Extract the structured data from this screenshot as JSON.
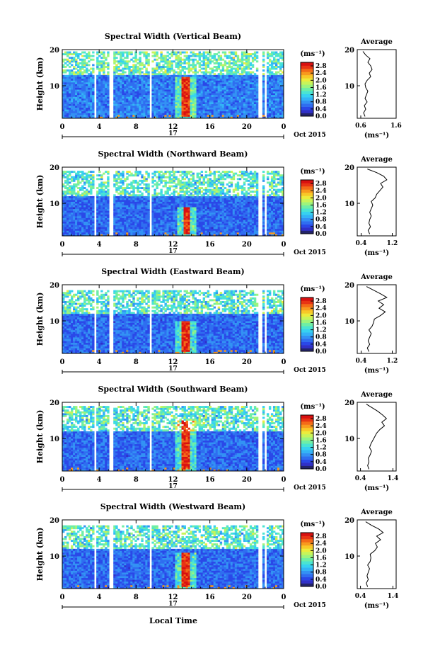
{
  "figure": {
    "xlabel": "Local Time",
    "ylabel": "Height (km)",
    "date_label": "Oct 2015",
    "day_label": "17",
    "unit_label": "(ms⁻¹)",
    "avg_title": "Average"
  },
  "colormap": [
    "#23236b",
    "#3030c8",
    "#2a48e8",
    "#2f6ef0",
    "#3392f4",
    "#33b4f6",
    "#37d2f0",
    "#4ae4d2",
    "#6eeea6",
    "#9cf47e",
    "#c8f45a",
    "#ecec3c",
    "#f8c828",
    "#f89a1e",
    "#f46a18",
    "#e83414",
    "#d81010"
  ],
  "chart_data": [
    {
      "type": "heatmap",
      "title": "Spectral Width (Vertical Beam)",
      "xlabel": "",
      "ylabel": "Height (km)",
      "x_ticks": [
        "0",
        "4",
        "8",
        "12",
        "16",
        "20",
        "0"
      ],
      "xlim": [
        0,
        24
      ],
      "y_ticks": [
        "10",
        "20"
      ],
      "ylim": [
        1,
        20
      ],
      "colorbar": {
        "ticks": [
          "0.0",
          "0.4",
          "0.8",
          "1.2",
          "1.6",
          "2.0",
          "2.4",
          "2.8"
        ],
        "range": [
          0,
          3.0
        ]
      },
      "gaps_hours": [
        [
          3.4,
          3.6
        ],
        [
          5.0,
          5.6
        ],
        [
          9.5,
          9.7
        ],
        [
          17.9,
          18.0
        ],
        [
          21.3,
          21.6
        ],
        [
          22.0,
          22.2
        ]
      ],
      "top_km": 19.5,
      "tropopause_km": 13,
      "enhancement": {
        "start_h": 13.0,
        "end_h": 13.8,
        "bottom_km": 1.5,
        "top_km": 12.5,
        "value": 2.8
      },
      "background_value": 0.7,
      "average_profile": {
        "title": "Average",
        "x_ticks": [
          "0.6",
          "1.6"
        ],
        "xlim": [
          0.5,
          1.6
        ],
        "y_ticks": [
          "10",
          "20"
        ],
        "ylim": [
          1,
          20
        ],
        "heights_km": [
          1.5,
          2.5,
          3.5,
          4.5,
          5.5,
          6.5,
          7.5,
          8.5,
          9.5,
          10.5,
          11.5,
          12.5,
          13.5,
          14.5,
          15.5,
          16.5,
          17.5,
          18.5,
          19.5
        ],
        "values": [
          0.72,
          0.68,
          0.74,
          0.7,
          0.78,
          0.72,
          0.76,
          0.8,
          0.74,
          0.72,
          0.78,
          0.88,
          0.84,
          0.92,
          0.88,
          0.8,
          0.86,
          0.74,
          0.66
        ]
      }
    },
    {
      "type": "heatmap",
      "title": "Spectral Width (Northward Beam)",
      "xlabel": "",
      "ylabel": "Height (km)",
      "x_ticks": [
        "0",
        "4",
        "8",
        "12",
        "16",
        "20",
        "0"
      ],
      "xlim": [
        0,
        24
      ],
      "y_ticks": [
        "10",
        "20"
      ],
      "ylim": [
        1,
        20
      ],
      "colorbar": {
        "ticks": [
          "0.0",
          "0.4",
          "0.8",
          "1.2",
          "1.6",
          "2.0",
          "2.4",
          "2.8"
        ],
        "range": [
          0,
          3.0
        ]
      },
      "gaps_hours": [
        [
          0.9,
          1.0
        ],
        [
          3.4,
          3.6
        ],
        [
          5.0,
          5.6
        ],
        [
          9.5,
          9.7
        ],
        [
          17.9,
          18.0
        ],
        [
          21.3,
          21.6
        ],
        [
          22.0,
          22.2
        ]
      ],
      "top_km": 19,
      "tropopause_km": 12,
      "enhancement": {
        "start_h": 13.2,
        "end_h": 13.8,
        "bottom_km": 1.5,
        "top_km": 9,
        "value": 2.8
      },
      "background_value": 0.6,
      "average_profile": {
        "title": "Average",
        "x_ticks": [
          "0.4",
          "1.2"
        ],
        "xlim": [
          0.3,
          1.3
        ],
        "y_ticks": [
          "10",
          "20"
        ],
        "ylim": [
          1,
          20
        ],
        "heights_km": [
          1.5,
          2.5,
          3.5,
          4.5,
          5.5,
          6.5,
          7.5,
          8.5,
          9.5,
          10.5,
          11.5,
          12.5,
          13.5,
          14.5,
          15.5,
          16.5,
          17.5,
          18.5,
          19.5
        ],
        "values": [
          0.62,
          0.58,
          0.64,
          0.6,
          0.62,
          0.66,
          0.62,
          0.66,
          0.7,
          0.66,
          0.76,
          0.8,
          0.88,
          0.96,
          0.9,
          1.06,
          0.98,
          0.8,
          0.56
        ]
      }
    },
    {
      "type": "heatmap",
      "title": "Spectral Width (Eastward Beam)",
      "xlabel": "",
      "ylabel": "Height (km)",
      "x_ticks": [
        "0",
        "4",
        "8",
        "12",
        "16",
        "20",
        "0"
      ],
      "xlim": [
        0,
        24
      ],
      "y_ticks": [
        "10",
        "20"
      ],
      "ylim": [
        1,
        20
      ],
      "colorbar": {
        "ticks": [
          "0.0",
          "0.4",
          "0.8",
          "1.2",
          "1.6",
          "2.0",
          "2.4",
          "2.8"
        ],
        "range": [
          0,
          3.0
        ]
      },
      "gaps_hours": [
        [
          0.9,
          1.0
        ],
        [
          3.4,
          3.6
        ],
        [
          5.0,
          5.6
        ],
        [
          9.5,
          9.7
        ],
        [
          17.9,
          18.0
        ],
        [
          21.3,
          21.6
        ],
        [
          22.0,
          22.2
        ]
      ],
      "top_km": 18.5,
      "tropopause_km": 12,
      "enhancement": {
        "start_h": 13.0,
        "end_h": 13.8,
        "bottom_km": 1.5,
        "top_km": 10,
        "value": 2.8
      },
      "background_value": 0.6,
      "average_profile": {
        "title": "Average",
        "x_ticks": [
          "0.4",
          "1.2"
        ],
        "xlim": [
          0.3,
          1.3
        ],
        "y_ticks": [
          "10",
          "20"
        ],
        "ylim": [
          1,
          20
        ],
        "heights_km": [
          1.5,
          2.5,
          3.5,
          4.5,
          5.5,
          6.5,
          7.5,
          8.5,
          9.5,
          10.5,
          11.5,
          12.5,
          13.5,
          14.5,
          15.5,
          16.5,
          17.5,
          18.5,
          19.5
        ],
        "values": [
          0.6,
          0.56,
          0.62,
          0.58,
          0.62,
          0.66,
          0.6,
          0.68,
          0.72,
          0.74,
          0.9,
          1.02,
          0.86,
          0.98,
          0.84,
          1.06,
          0.9,
          0.72,
          0.54
        ]
      }
    },
    {
      "type": "heatmap",
      "title": "Spectral Width (Southward Beam)",
      "xlabel": "",
      "ylabel": "Height (km)",
      "x_ticks": [
        "0",
        "4",
        "8",
        "12",
        "16",
        "20",
        "0"
      ],
      "xlim": [
        0,
        24
      ],
      "y_ticks": [
        "10",
        "20"
      ],
      "ylim": [
        1,
        20
      ],
      "colorbar": {
        "ticks": [
          "0.0",
          "0.4",
          "0.8",
          "1.2",
          "1.6",
          "2.0",
          "2.4",
          "2.8"
        ],
        "range": [
          0,
          3.0
        ]
      },
      "gaps_hours": [
        [
          0.9,
          1.0
        ],
        [
          3.4,
          3.6
        ],
        [
          5.0,
          5.6
        ],
        [
          9.5,
          9.7
        ],
        [
          17.9,
          18.0
        ],
        [
          21.3,
          21.6
        ],
        [
          22.0,
          22.2
        ]
      ],
      "top_km": 19,
      "tropopause_km": 12,
      "enhancement": {
        "start_h": 13.0,
        "end_h": 13.9,
        "bottom_km": 1.5,
        "top_km": 15,
        "value": 2.8
      },
      "background_value": 0.6,
      "average_profile": {
        "title": "Average",
        "x_ticks": [
          "0.4",
          "1.4"
        ],
        "xlim": [
          0.3,
          1.5
        ],
        "y_ticks": [
          "10",
          "20"
        ],
        "ylim": [
          1,
          20
        ],
        "heights_km": [
          1.5,
          2.5,
          3.5,
          4.5,
          5.5,
          6.5,
          7.5,
          8.5,
          9.5,
          10.5,
          11.5,
          12.5,
          13.5,
          14.5,
          15.5,
          16.5,
          17.5,
          18.5,
          19.5
        ],
        "values": [
          0.66,
          0.62,
          0.66,
          0.64,
          0.7,
          0.74,
          0.68,
          0.72,
          0.78,
          0.84,
          0.9,
          1.0,
          1.14,
          1.06,
          1.2,
          1.08,
          0.94,
          0.76,
          0.58
        ]
      }
    },
    {
      "type": "heatmap",
      "title": "Spectral Width (Westward Beam)",
      "xlabel": "Local Time",
      "ylabel": "Height (km)",
      "x_ticks": [
        "0",
        "4",
        "8",
        "12",
        "16",
        "20",
        "0"
      ],
      "xlim": [
        0,
        24
      ],
      "y_ticks": [
        "10",
        "20"
      ],
      "ylim": [
        1,
        20
      ],
      "colorbar": {
        "ticks": [
          "0.0",
          "0.4",
          "0.8",
          "1.2",
          "1.6",
          "2.0",
          "2.4",
          "2.8"
        ],
        "range": [
          0,
          3.0
        ]
      },
      "gaps_hours": [
        [
          0.9,
          1.0
        ],
        [
          3.4,
          3.6
        ],
        [
          5.0,
          5.6
        ],
        [
          9.5,
          9.7
        ],
        [
          17.9,
          18.0
        ],
        [
          21.3,
          21.6
        ],
        [
          22.0,
          22.2
        ]
      ],
      "top_km": 18.5,
      "tropopause_km": 12,
      "enhancement": {
        "start_h": 13.0,
        "end_h": 13.8,
        "bottom_km": 1.5,
        "top_km": 11,
        "value": 2.8
      },
      "background_value": 0.6,
      "average_profile": {
        "title": "Average",
        "x_ticks": [
          "0.4",
          "1.4"
        ],
        "xlim": [
          0.3,
          1.5
        ],
        "y_ticks": [
          "10",
          "20"
        ],
        "ylim": [
          1,
          20
        ],
        "heights_km": [
          1.5,
          2.5,
          3.5,
          4.5,
          5.5,
          6.5,
          7.5,
          8.5,
          9.5,
          10.5,
          11.5,
          12.5,
          13.5,
          14.5,
          15.5,
          16.5,
          17.5,
          18.5,
          19.5
        ],
        "values": [
          0.62,
          0.58,
          0.64,
          0.6,
          0.64,
          0.68,
          0.62,
          0.7,
          0.72,
          0.7,
          0.84,
          0.92,
          0.86,
          1.02,
          0.9,
          1.1,
          0.96,
          0.74,
          0.56
        ]
      }
    }
  ]
}
